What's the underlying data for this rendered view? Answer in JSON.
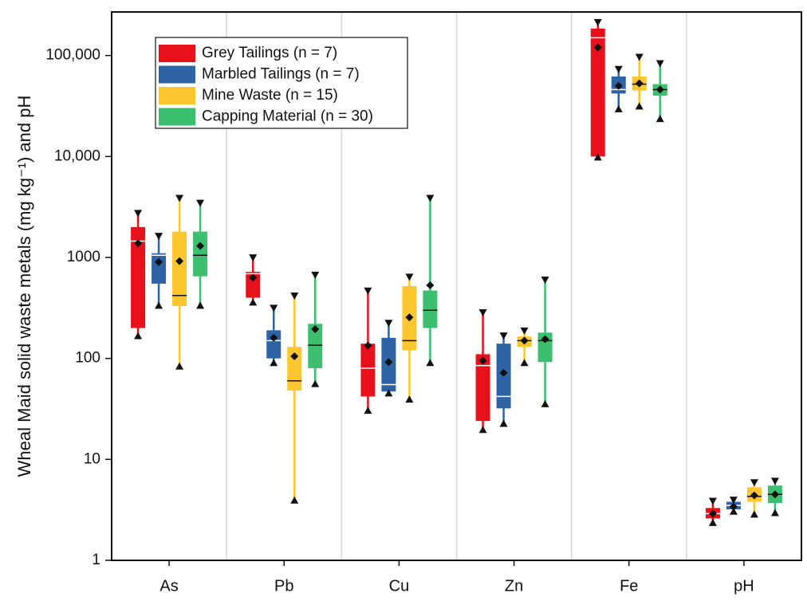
{
  "chart_data": {
    "type": "box",
    "log_y": true,
    "ylabel": "Wheal Maid solid waste metals (mg kg⁻¹) and pH",
    "categories": [
      "As",
      "Pb",
      "Cu",
      "Zn",
      "Fe",
      "pH"
    ],
    "ylim": [
      1,
      270000
    ],
    "yticks": [
      1,
      10,
      100,
      1000,
      {
        "value": 10000,
        "label": "10,000"
      },
      {
        "value": 100000,
        "label": "100,000"
      }
    ],
    "series": [
      {
        "name": "Grey Tailings (n = 7)",
        "color": "#e8101a",
        "median_color": "#ffffff",
        "min": [
          170,
          365,
          31,
          20,
          10000,
          2.4
        ],
        "q1": [
          200,
          400,
          42,
          24,
          10000,
          2.6
        ],
        "median": [
          1450,
          690,
          80,
          85,
          150000,
          2.9
        ],
        "q3": [
          2000,
          720,
          140,
          110,
          185000,
          3.3
        ],
        "max": [
          2700,
          980,
          460,
          280,
          210000,
          3.8
        ],
        "mean": [
          1380,
          630,
          134,
          95,
          120000,
          2.9
        ]
      },
      {
        "name": "Marbled Tailings (n = 7)",
        "color": "#2e64a6",
        "median_color": "#ffffff",
        "min": [
          340,
          92,
          46,
          23,
          30000,
          3.1
        ],
        "q1": [
          550,
          100,
          47,
          32,
          42000,
          3.2
        ],
        "median": [
          1050,
          150,
          55,
          42,
          46000,
          3.5
        ],
        "q3": [
          1100,
          190,
          160,
          140,
          62000,
          3.8
        ],
        "max": [
          1600,
          310,
          220,
          165,
          72000,
          3.9
        ],
        "mean": [
          900,
          160,
          92,
          72,
          50000,
          3.4
        ]
      },
      {
        "name": "Mine Waste (n = 15)",
        "color": "#fcc72e",
        "median_color": "#111111",
        "min": [
          85,
          4,
          40,
          92,
          32000,
          2.9
        ],
        "q1": [
          330,
          48,
          120,
          130,
          45000,
          3.8
        ],
        "median": [
          420,
          60,
          150,
          150,
          52000,
          4.3
        ],
        "q3": [
          1800,
          130,
          520,
          165,
          62000,
          5.3
        ],
        "max": [
          3800,
          410,
          630,
          185,
          95000,
          5.8
        ],
        "mean": [
          920,
          105,
          255,
          150,
          53000,
          4.4
        ]
      },
      {
        "name": "Capping Material (n = 30)",
        "color": "#3cc06f",
        "median_color": "#111111",
        "min": [
          340,
          57,
          92,
          36,
          24000,
          3.0
        ],
        "q1": [
          650,
          80,
          200,
          92,
          40000,
          3.7
        ],
        "median": [
          1050,
          135,
          300,
          150,
          46000,
          4.5
        ],
        "q3": [
          1800,
          220,
          470,
          180,
          52000,
          5.5
        ],
        "max": [
          3400,
          660,
          3800,
          590,
          82000,
          6.0
        ],
        "mean": [
          1300,
          195,
          530,
          155,
          46000,
          4.5
        ]
      }
    ]
  }
}
